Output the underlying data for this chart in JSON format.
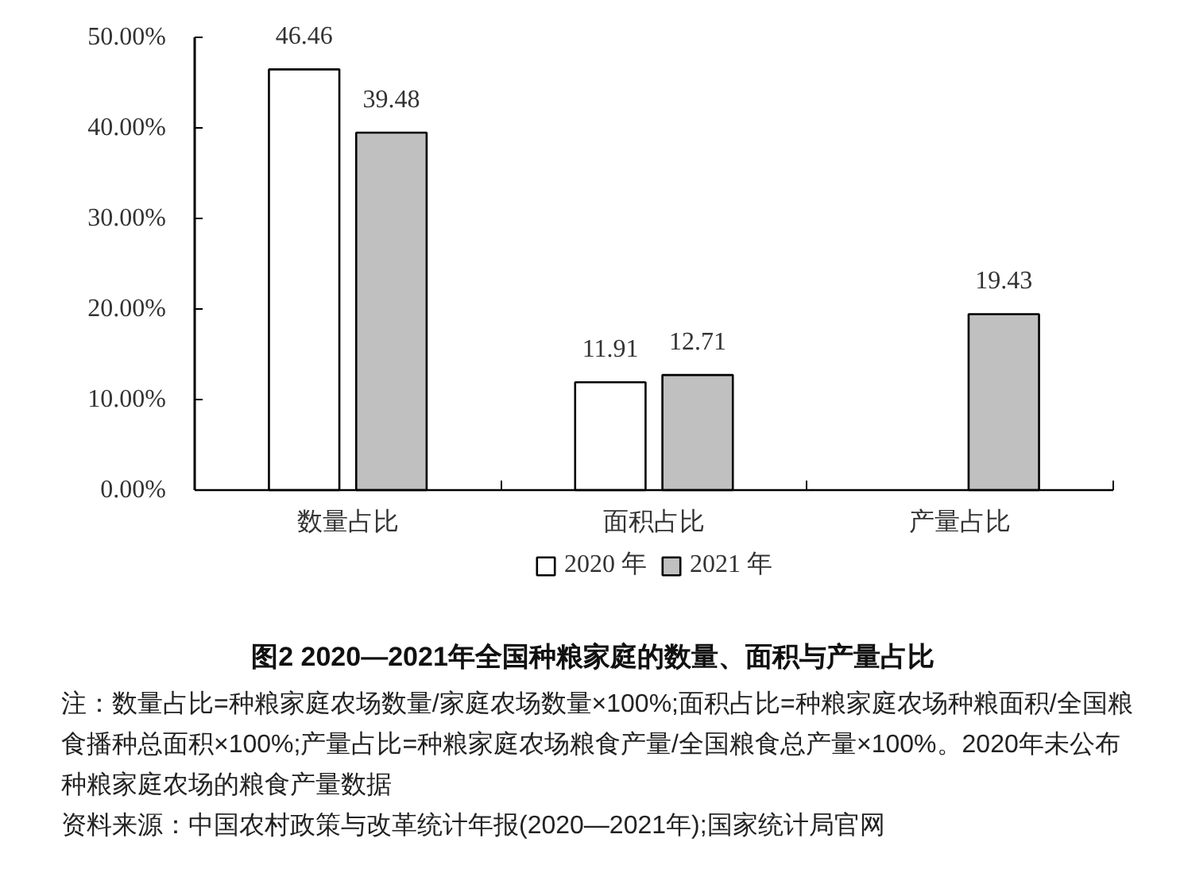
{
  "chart_data": {
    "type": "bar",
    "title": "图2 2020—2021年全国种粮家庭的数量、面积与产量占比",
    "annotations": [
      "注：数量占比=种粮家庭农场数量/家庭农场数量×100%;面积占比=种粮家庭农场种粮面积/全国粮食播种总面积×100%;产量占比=种粮家庭农场粮食产量/全国粮食总产量×100%。2020年未公布种粮家庭农场的粮食产量数据",
      "资料来源：中国农村政策与改革统计年报(2020—2021年);国家统计局官网"
    ],
    "categories": [
      "数量占比",
      "面积占比",
      "产量占比"
    ],
    "series": [
      {
        "name": "2020 年",
        "color": "#ffffff",
        "values": [
          46.46,
          11.91,
          null
        ]
      },
      {
        "name": "2021 年",
        "color": "#c0c0c0",
        "values": [
          39.48,
          12.71,
          19.43
        ]
      }
    ],
    "ylim": [
      0,
      50
    ],
    "yticks": [
      {
        "value": 0,
        "label": "0.00%"
      },
      {
        "value": 10,
        "label": "10.00%"
      },
      {
        "value": 20,
        "label": "20.00%"
      },
      {
        "value": 30,
        "label": "30.00%"
      },
      {
        "value": 40,
        "label": "40.00%"
      },
      {
        "value": 50,
        "label": "50.00%"
      }
    ],
    "data_labels": true,
    "legend": "bottom"
  }
}
